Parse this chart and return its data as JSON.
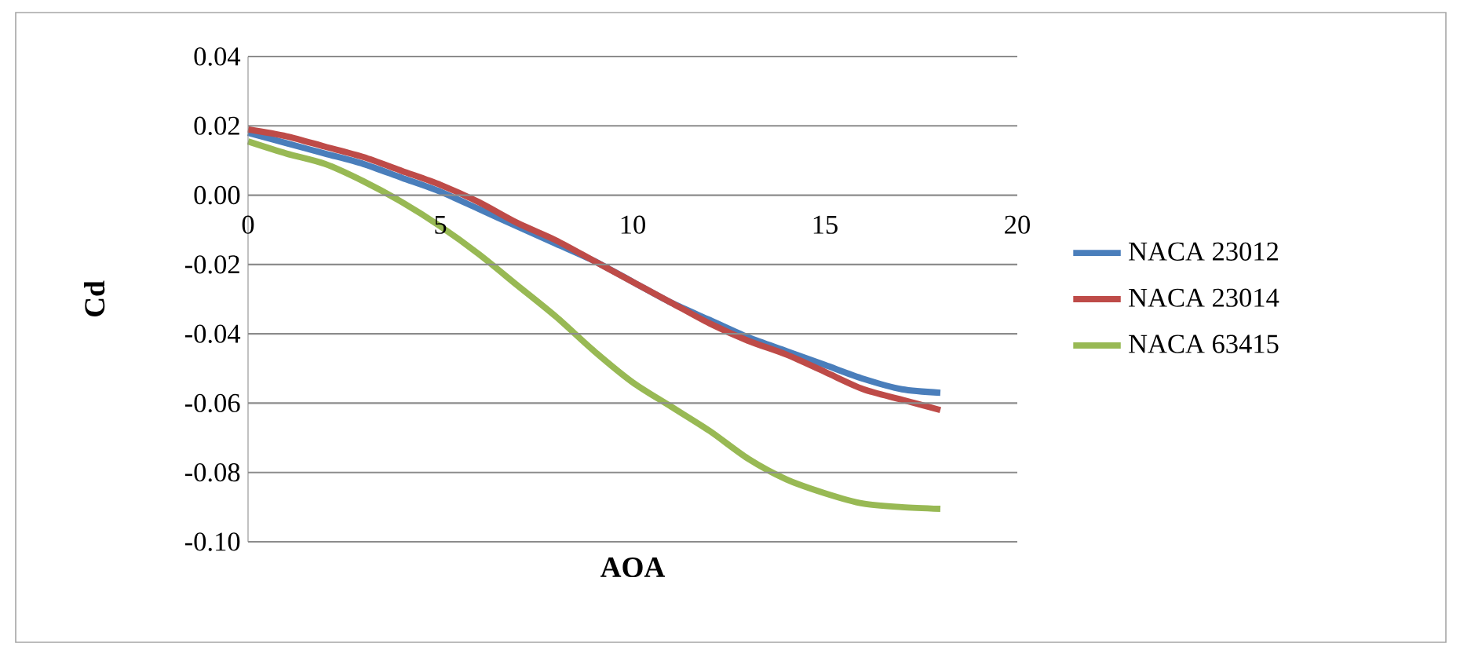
{
  "chart_data": {
    "type": "line",
    "xlabel": "AOA",
    "ylabel": "Cd",
    "x": [
      0,
      1,
      2,
      3,
      4,
      5,
      6,
      7,
      8,
      9,
      10,
      11,
      12,
      13,
      14,
      15,
      16,
      17,
      18
    ],
    "series": [
      {
        "name": "NACA 23012",
        "color": "#4a7ebb",
        "values": [
          0.018,
          0.015,
          0.012,
          0.009,
          0.005,
          0.001,
          -0.004,
          -0.009,
          -0.014,
          -0.019,
          -0.025,
          -0.031,
          -0.036,
          -0.041,
          -0.045,
          -0.049,
          -0.053,
          -0.056,
          -0.057
        ]
      },
      {
        "name": "NACA 23014",
        "color": "#be4b48",
        "values": [
          0.019,
          0.017,
          0.014,
          0.011,
          0.007,
          0.003,
          -0.002,
          -0.008,
          -0.013,
          -0.019,
          -0.025,
          -0.031,
          -0.037,
          -0.042,
          -0.046,
          -0.051,
          -0.056,
          -0.059,
          -0.062
        ]
      },
      {
        "name": "NACA 63415",
        "color": "#98b954",
        "values": [
          0.0155,
          0.012,
          0.009,
          0.004,
          -0.002,
          -0.009,
          -0.017,
          -0.026,
          -0.035,
          -0.045,
          -0.054,
          -0.061,
          -0.068,
          -0.076,
          -0.082,
          -0.086,
          -0.089,
          -0.09,
          -0.0905
        ]
      }
    ],
    "xlim": [
      0,
      20
    ],
    "ylim": [
      -0.1,
      0.04
    ],
    "xticks": [
      0,
      5,
      10,
      15,
      20
    ],
    "yticks": [
      {
        "value": -0.1,
        "label": "-0.10"
      },
      {
        "value": -0.08,
        "label": "-0.08"
      },
      {
        "value": -0.06,
        "label": "-0.06"
      },
      {
        "value": -0.04,
        "label": "-0.04"
      },
      {
        "value": -0.02,
        "label": "-0.02"
      },
      {
        "value": 0,
        "label": "0.00"
      },
      {
        "value": 0.02,
        "label": "0.02"
      },
      {
        "value": 0.04,
        "label": "0.04"
      }
    ],
    "grid": "y",
    "legend": "right",
    "line_style": "solid",
    "marker": "none"
  }
}
